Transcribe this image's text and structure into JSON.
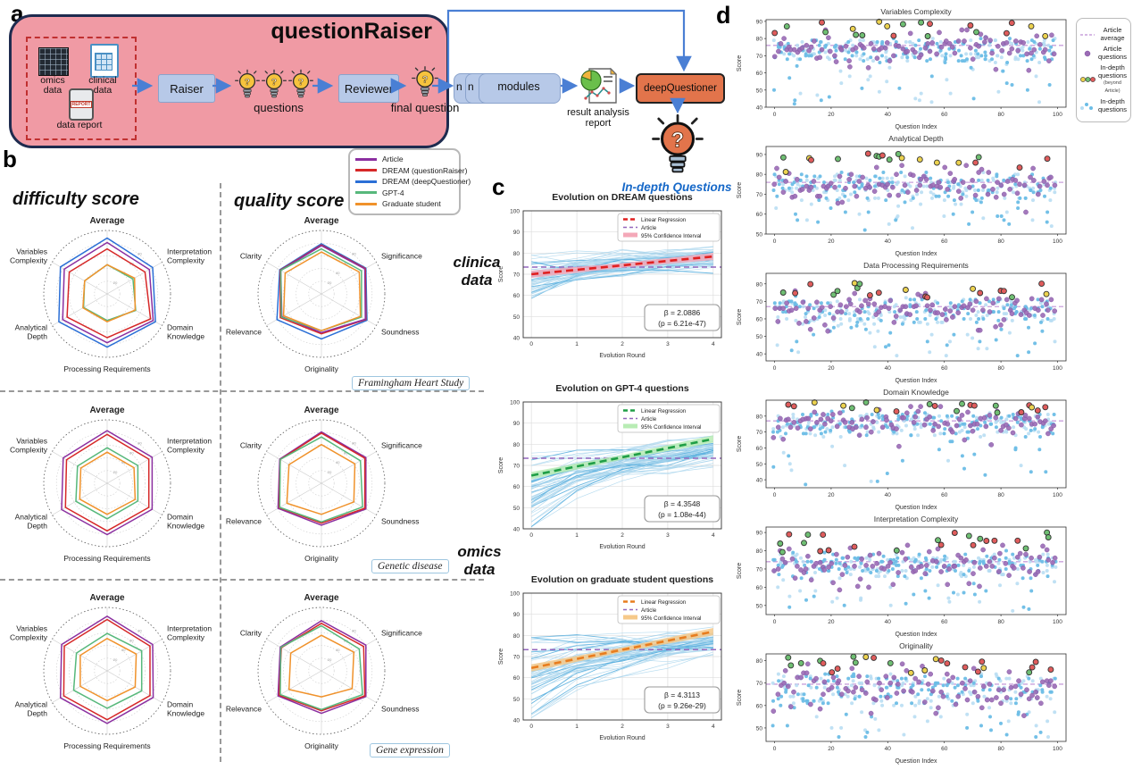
{
  "panels": {
    "a": "a",
    "b": "b",
    "c": "c",
    "d": "d"
  },
  "flowchart": {
    "title": "questionRaiser",
    "inputs": {
      "omics": [
        "omics",
        "data"
      ],
      "clinical": [
        "clinical",
        "data"
      ],
      "report": [
        "data report"
      ],
      "report_icon_text": "REPORT"
    },
    "raiser": "Raiser",
    "questions": "questions",
    "reviewer": "Reviewer",
    "final_question": "final question",
    "module_n1": "n",
    "module_n2": "n",
    "modules": "modules",
    "result_report": [
      "result analysis",
      "report"
    ],
    "deep_questioner": "deepQuestioner",
    "in_depth": "In-depth Questions"
  },
  "panel_b": {
    "difficulty_title": "difficulty score",
    "quality_title": "quality score",
    "legend": [
      {
        "label": "Article",
        "color": "#8b2fa0"
      },
      {
        "label": "DREAM (questionRaiser)",
        "color": "#d62828"
      },
      {
        "label": "DREAM (deepQuestioner)",
        "color": "#2b6fd6"
      },
      {
        "label": "GPT-4",
        "color": "#57b87b"
      },
      {
        "label": "Graduate student",
        "color": "#f0922b"
      }
    ],
    "dataset_labels": [
      "Framingham Heart Study",
      "Genetic disease",
      "Gene expression"
    ],
    "side_labels": {
      "clinical": [
        "clinica",
        "data"
      ],
      "omics": [
        "omics",
        "data"
      ]
    }
  },
  "scatter_style": {
    "article_line": "#c9a0dc",
    "article_dot": "#9b6bb5",
    "blues": [
      "#6bbde6",
      "#b5dcf2"
    ],
    "beyond": [
      "#ecd24f",
      "#6fbf73",
      "#e05c5c"
    ]
  },
  "panel_d_legend": [
    {
      "glyph": "dashed-line",
      "label": "Article average"
    },
    {
      "glyph": "dot",
      "label": "Article questions"
    },
    {
      "glyph": "multi-dot",
      "label": "In-depth questions",
      "sub": "(beyond Article)"
    },
    {
      "glyph": "blue-dots",
      "label": "In-depth questions"
    }
  ],
  "chart_data": [
    {
      "id": "radar-diff-1",
      "type": "radar",
      "metric": "difficulty",
      "dataset": "Framingham Heart Study",
      "axes": [
        "Average",
        "Interpretation Complexity",
        "Domain Knowledge",
        "Processing Requirements",
        "Analytical Depth",
        "Variables Complexity"
      ],
      "rticks": [
        20,
        40,
        60,
        80
      ],
      "series": [
        {
          "name": "DREAM (deepQuestioner)",
          "color": "#2b6fd6",
          "values": [
            88,
            83,
            88,
            84,
            88,
            85
          ]
        },
        {
          "name": "Article",
          "color": "#8b2fa0",
          "values": [
            81,
            77,
            84,
            77,
            81,
            78
          ]
        },
        {
          "name": "DREAM (questionRaiser)",
          "color": "#d62828",
          "values": [
            71,
            69,
            79,
            69,
            73,
            69
          ]
        },
        {
          "name": "GPT-4",
          "color": "#57b87b",
          "values": [
            46,
            47,
            52,
            42,
            43,
            41
          ]
        },
        {
          "name": "Graduate student",
          "color": "#f0922b",
          "values": [
            46,
            50,
            51,
            44,
            44,
            41
          ]
        }
      ]
    },
    {
      "id": "radar-qual-1",
      "type": "radar",
      "metric": "quality",
      "dataset": "Framingham Heart Study",
      "axes": [
        "Average",
        "Significance",
        "Soundness",
        "Originality",
        "Relevance",
        "Clarity"
      ],
      "rticks": [
        20,
        40,
        60,
        80
      ],
      "series": [
        {
          "name": "DREAM (deepQuestioner)",
          "color": "#2b6fd6",
          "values": [
            79,
            81,
            83,
            71,
            81,
            76
          ]
        },
        {
          "name": "DREAM (questionRaiser)",
          "color": "#d62828",
          "values": [
            77,
            80,
            81,
            63,
            75,
            75
          ]
        },
        {
          "name": "Article",
          "color": "#8b2fa0",
          "values": [
            76,
            79,
            80,
            61,
            72,
            74
          ]
        },
        {
          "name": "GPT-4",
          "color": "#57b87b",
          "values": [
            71,
            73,
            73,
            58,
            73,
            74
          ]
        },
        {
          "name": "Graduate student",
          "color": "#f0922b",
          "values": [
            66,
            69,
            71,
            58,
            69,
            66
          ]
        }
      ]
    },
    {
      "id": "radar-diff-2",
      "type": "radar",
      "metric": "difficulty",
      "dataset": "Genetic disease",
      "axes": [
        "Average",
        "Interpretation Complexity",
        "Domain Knowledge",
        "Processing Requirements",
        "Analytical Depth",
        "Variables Complexity"
      ],
      "rticks": [
        20,
        40,
        60,
        80
      ],
      "series": [
        {
          "name": "Article",
          "color": "#8b2fa0",
          "values": [
            83,
            82,
            82,
            81,
            83,
            80
          ]
        },
        {
          "name": "DREAM (questionRaiser)",
          "color": "#d62828",
          "values": [
            77,
            76,
            76,
            75,
            76,
            74
          ]
        },
        {
          "name": "GPT-4",
          "color": "#57b87b",
          "values": [
            56,
            56,
            56,
            56,
            57,
            54
          ]
        },
        {
          "name": "Graduate student",
          "color": "#f0922b",
          "values": [
            49,
            49,
            51,
            49,
            50,
            48
          ]
        }
      ]
    },
    {
      "id": "radar-qual-2",
      "type": "radar",
      "metric": "quality",
      "dataset": "Genetic disease",
      "axes": [
        "Average",
        "Significance",
        "Soundness",
        "Originality",
        "Relevance",
        "Clarity"
      ],
      "rticks": [
        20,
        40,
        60,
        80
      ],
      "series": [
        {
          "name": "Article",
          "color": "#8b2fa0",
          "values": [
            81,
            81,
            81,
            66,
            79,
            76
          ]
        },
        {
          "name": "DREAM (questionRaiser)",
          "color": "#d62828",
          "values": [
            79,
            79,
            79,
            63,
            77,
            75
          ]
        },
        {
          "name": "GPT-4",
          "color": "#57b87b",
          "values": [
            73,
            71,
            75,
            61,
            76,
            75
          ]
        },
        {
          "name": "Graduate student",
          "color": "#f0922b",
          "values": [
            61,
            61,
            59,
            49,
            63,
            59
          ]
        }
      ]
    },
    {
      "id": "radar-diff-3",
      "type": "radar",
      "metric": "difficulty",
      "dataset": "Gene expression",
      "axes": [
        "Average",
        "Interpretation Complexity",
        "Domain Knowledge",
        "Processing Requirements",
        "Analytical Depth",
        "Variables Complexity"
      ],
      "rticks": [
        20,
        40,
        60,
        80
      ],
      "series": [
        {
          "name": "Article",
          "color": "#8b2fa0",
          "values": [
            86,
            83,
            84,
            83,
            85,
            83
          ]
        },
        {
          "name": "DREAM (questionRaiser)",
          "color": "#d62828",
          "values": [
            81,
            78,
            78,
            77,
            79,
            78
          ]
        },
        {
          "name": "GPT-4",
          "color": "#57b87b",
          "values": [
            59,
            63,
            63,
            59,
            61,
            56
          ]
        },
        {
          "name": "Graduate student",
          "color": "#f0922b",
          "values": [
            51,
            53,
            51,
            47,
            49,
            49
          ]
        }
      ]
    },
    {
      "id": "radar-qual-3",
      "type": "radar",
      "metric": "quality",
      "dataset": "Gene expression",
      "axes": [
        "Average",
        "Significance",
        "Soundness",
        "Originality",
        "Relevance",
        "Clarity"
      ],
      "rticks": [
        20,
        40,
        60,
        80
      ],
      "series": [
        {
          "name": "Article",
          "color": "#8b2fa0",
          "values": [
            79,
            81,
            81,
            67,
            79,
            75
          ]
        },
        {
          "name": "DREAM (questionRaiser)",
          "color": "#d62828",
          "values": [
            75,
            77,
            79,
            63,
            77,
            73
          ]
        },
        {
          "name": "GPT-4",
          "color": "#57b87b",
          "values": [
            71,
            69,
            75,
            61,
            75,
            74
          ]
        },
        {
          "name": "Graduate student",
          "color": "#f0922b",
          "values": [
            56,
            59,
            56,
            41,
            59,
            56
          ]
        }
      ]
    },
    {
      "id": "line-dream",
      "type": "line",
      "title": "Evolution on DREAM questions",
      "xlabel": "Evolution Round",
      "ylabel": "Score",
      "xlim": [
        -0.18,
        4.18
      ],
      "ylim": [
        40,
        100
      ],
      "xticks": [
        0,
        1,
        2,
        3,
        4
      ],
      "yticks": [
        40,
        50,
        60,
        70,
        80,
        90,
        100
      ],
      "article": {
        "label": "Article",
        "value": 73.4,
        "color": "#9467bd"
      },
      "regression": {
        "label": "Linear Regression",
        "color": "#e02020",
        "ci_label": "95% Confidence Interval",
        "ci_color": "#f4a8b8",
        "start": 70.0,
        "end": 78.4
      },
      "stats": [
        "β = 2.0886",
        "(p = 6.21e-47)"
      ],
      "spaghetti": {
        "n": 55,
        "start_mean": 68,
        "start_sd": 5,
        "end_mean": 77.5,
        "end_sd": 2.5,
        "seed": 11
      }
    },
    {
      "id": "line-gpt4",
      "type": "line",
      "title": "Evolution on GPT-4 questions",
      "xlabel": "Evolution Round",
      "ylabel": "Score",
      "xlim": [
        -0.18,
        4.18
      ],
      "ylim": [
        40,
        100
      ],
      "xticks": [
        0,
        1,
        2,
        3,
        4
      ],
      "yticks": [
        40,
        50,
        60,
        70,
        80,
        90,
        100
      ],
      "article": {
        "label": "Article",
        "value": 73.4,
        "color": "#9467bd"
      },
      "regression": {
        "label": "Linear Regression",
        "color": "#1f9e46",
        "ci_label": "95% Confidence Interval",
        "ci_color": "#b8ecb4",
        "start": 65.2,
        "end": 82.5
      },
      "stats": [
        "β = 4.3548",
        "(p = 1.08e-44)"
      ],
      "spaghetti": {
        "n": 55,
        "start_mean": 61,
        "start_sd": 9,
        "end_mean": 77,
        "end_sd": 3,
        "seed": 22
      }
    },
    {
      "id": "line-grad",
      "type": "line",
      "title": "Evolution on graduate student questions",
      "xlabel": "Evolution Round",
      "ylabel": "Score",
      "xlim": [
        -0.18,
        4.18
      ],
      "ylim": [
        40,
        100
      ],
      "xticks": [
        0,
        1,
        2,
        3,
        4
      ],
      "yticks": [
        40,
        50,
        60,
        70,
        80,
        90,
        100
      ],
      "article": {
        "label": "Article",
        "value": 73.3,
        "color": "#9467bd"
      },
      "regression": {
        "label": "Linear Regression",
        "color": "#e87d1e",
        "ci_label": "95% Confidence Interval",
        "ci_color": "#f6c98a",
        "start": 64.6,
        "end": 81.8
      },
      "stats": [
        "β = 4.3113",
        "(p = 9.26e-29)"
      ],
      "spaghetti": {
        "n": 55,
        "start_mean": 61,
        "start_sd": 9.5,
        "end_mean": 77,
        "end_sd": 3,
        "seed": 33
      }
    },
    {
      "id": "scatter-1",
      "type": "scatter",
      "title": "Variables Complexity",
      "xlabel": "Question Index",
      "ylabel": "Score",
      "xlim": [
        -3,
        103
      ],
      "xticks": [
        0,
        20,
        40,
        60,
        80,
        100
      ],
      "ylim": [
        40,
        91
      ],
      "yticks": [
        40,
        50,
        60,
        70,
        80,
        90
      ],
      "article_average": 76,
      "seed": 1
    },
    {
      "id": "scatter-2",
      "type": "scatter",
      "title": "Analytical Depth",
      "xlabel": "Question Index",
      "ylabel": "Score",
      "xlim": [
        -3,
        103
      ],
      "xticks": [
        0,
        20,
        40,
        60,
        80,
        100
      ],
      "ylim": [
        50,
        94
      ],
      "yticks": [
        50,
        60,
        70,
        80,
        90
      ],
      "article_average": 76,
      "seed": 2
    },
    {
      "id": "scatter-3",
      "type": "scatter",
      "title": "Data Processing Requirements",
      "xlabel": "Question Index",
      "ylabel": "Score",
      "xlim": [
        -3,
        103
      ],
      "xticks": [
        0,
        20,
        40,
        60,
        80,
        100
      ],
      "ylim": [
        36,
        86
      ],
      "yticks": [
        40,
        50,
        60,
        70,
        80
      ],
      "article_average": 67,
      "seed": 3
    },
    {
      "id": "scatter-4",
      "type": "scatter",
      "title": "Domain Knowledge",
      "xlabel": "Question Index",
      "ylabel": "Score",
      "xlim": [
        -3,
        103
      ],
      "xticks": [
        0,
        20,
        40,
        60,
        80,
        100
      ],
      "ylim": [
        35,
        90
      ],
      "yticks": [
        40,
        50,
        60,
        70,
        80
      ],
      "article_average": 77,
      "seed": 4
    },
    {
      "id": "scatter-5",
      "type": "scatter",
      "title": "Interpretation Complexity",
      "xlabel": "Question Index",
      "ylabel": "Score",
      "xlim": [
        -3,
        103
      ],
      "xticks": [
        0,
        20,
        40,
        60,
        80,
        100
      ],
      "ylim": [
        45,
        93
      ],
      "yticks": [
        50,
        60,
        70,
        80,
        90
      ],
      "article_average": 74,
      "seed": 5
    },
    {
      "id": "scatter-6",
      "type": "scatter",
      "title": "Originality",
      "xlabel": "Question Index",
      "ylabel": "Score",
      "xlim": [
        -3,
        103
      ],
      "xticks": [
        0,
        20,
        40,
        60,
        80,
        100
      ],
      "ylim": [
        44,
        83
      ],
      "yticks": [
        50,
        60,
        70,
        80
      ],
      "article_average": 69.5,
      "seed": 6
    }
  ]
}
